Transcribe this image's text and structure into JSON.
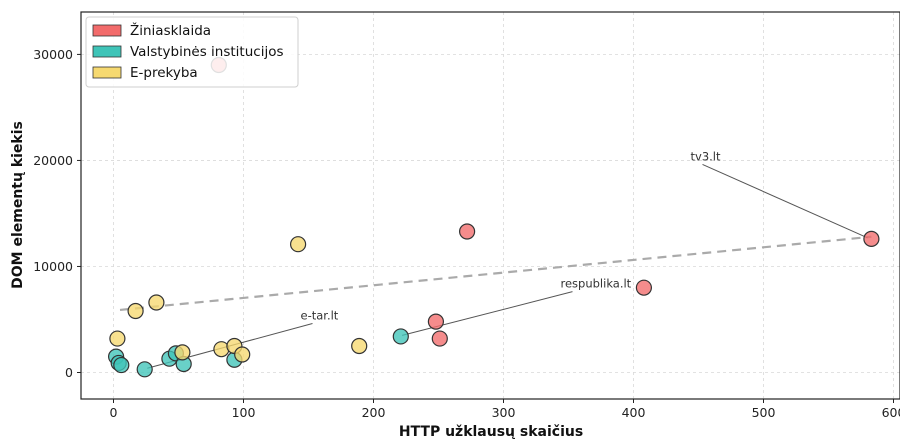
{
  "chart_data": {
    "type": "scatter",
    "xlabel": "HTTP užklausų skaičius",
    "ylabel": "DOM elementų kiekis",
    "xlim": [
      -25,
      605
    ],
    "ylim": [
      -2500,
      34000
    ],
    "xticks": [
      "0",
      "100",
      "200",
      "300",
      "400",
      "500",
      "600"
    ],
    "yticks": [
      "0",
      "10000",
      "20000",
      "30000"
    ],
    "grid": true,
    "legend_position": "top-left",
    "series": [
      {
        "name": "Žiniasklaida",
        "color": "#f26b6b",
        "points": [
          {
            "x": 583,
            "y": 12600
          },
          {
            "x": 272,
            "y": 13300
          },
          {
            "x": 408,
            "y": 8000
          },
          {
            "x": 248,
            "y": 4800
          },
          {
            "x": 251,
            "y": 3200
          },
          {
            "x": 81,
            "y": 29000
          }
        ]
      },
      {
        "name": "Valstybinės institucijos",
        "color": "#3fc4b8",
        "points": [
          {
            "x": 221,
            "y": 3400
          },
          {
            "x": 2,
            "y": 1500
          },
          {
            "x": 4,
            "y": 900
          },
          {
            "x": 6,
            "y": 700
          },
          {
            "x": 24,
            "y": 300
          },
          {
            "x": 43,
            "y": 1300
          },
          {
            "x": 48,
            "y": 1800
          },
          {
            "x": 54,
            "y": 800
          },
          {
            "x": 93,
            "y": 1200
          }
        ]
      },
      {
        "name": "E-prekyba",
        "color": "#f6d970",
        "points": [
          {
            "x": 142,
            "y": 12100
          },
          {
            "x": 33,
            "y": 6600
          },
          {
            "x": 17,
            "y": 5800
          },
          {
            "x": 3,
            "y": 3200
          },
          {
            "x": 53,
            "y": 1900
          },
          {
            "x": 83,
            "y": 2200
          },
          {
            "x": 93,
            "y": 2500
          },
          {
            "x": 99,
            "y": 1700
          },
          {
            "x": 189,
            "y": 2500
          }
        ]
      }
    ],
    "trendline": {
      "x": [
        5,
        583
      ],
      "y": [
        5900,
        12800
      ],
      "color": "#aaaaaa",
      "style": "dashed"
    },
    "annotations": [
      {
        "text": "tv3.lt",
        "text_x": 450,
        "text_y": 20000,
        "target_x": 580,
        "target_y": 12700
      },
      {
        "text": "respublika.lt",
        "text_x": 350,
        "text_y": 8000,
        "target_x": 222,
        "target_y": 3500
      },
      {
        "text": "e-tar.lt",
        "text_x": 150,
        "text_y": 5000,
        "target_x": 26,
        "target_y": 400
      }
    ]
  }
}
